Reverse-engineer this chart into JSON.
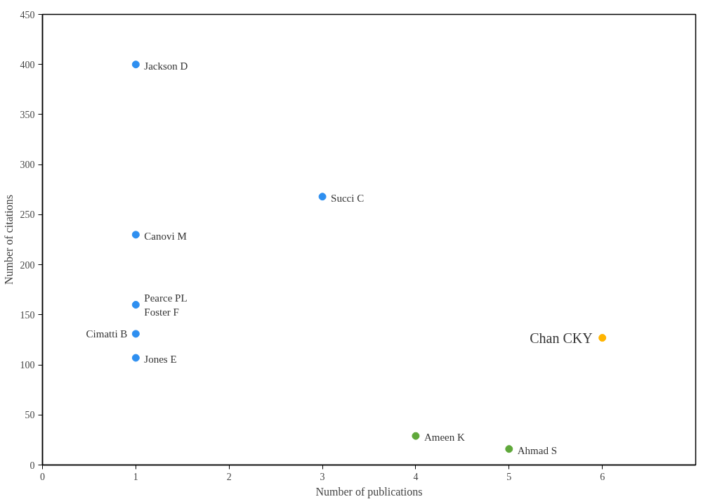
{
  "chart_data": {
    "type": "scatter",
    "xlabel": "Number of publications",
    "ylabel": "Number of citations",
    "xlim": [
      0,
      7
    ],
    "xticks": [
      0,
      1,
      2,
      3,
      4,
      5,
      6
    ],
    "ylim": [
      0,
      450
    ],
    "yticks": [
      0,
      50,
      100,
      150,
      200,
      250,
      300,
      350,
      400,
      450
    ],
    "grid": false,
    "marker": "circle",
    "series": [
      {
        "color": "#2e8ff0",
        "x": [
          1,
          3,
          1,
          1,
          1,
          1
        ],
        "values": [
          400,
          268,
          230,
          160,
          131,
          107
        ]
      },
      {
        "color": "#ffb400",
        "x": [
          6
        ],
        "values": [
          127
        ]
      },
      {
        "color": "#5fa83a",
        "x": [
          4,
          5
        ],
        "values": [
          29,
          16
        ]
      }
    ],
    "annotations": [
      {
        "text": "Jackson D",
        "x": 1,
        "y": 400
      },
      {
        "text": "Succi C",
        "x": 3,
        "y": 268
      },
      {
        "text": "Canovi M",
        "x": 1,
        "y": 230
      },
      {
        "text": "Pearce PL",
        "x": 1,
        "y": 160
      },
      {
        "text": "Foster F",
        "x": 1,
        "y": 160
      },
      {
        "text": "Cimatti B",
        "x": 1,
        "y": 131
      },
      {
        "text": "Jones E",
        "x": 1,
        "y": 107
      },
      {
        "text": "Chan CKY",
        "x": 6,
        "y": 127
      },
      {
        "text": "Ameen K",
        "x": 4,
        "y": 29
      },
      {
        "text": "Ahmad S",
        "x": 5,
        "y": 16
      }
    ]
  }
}
